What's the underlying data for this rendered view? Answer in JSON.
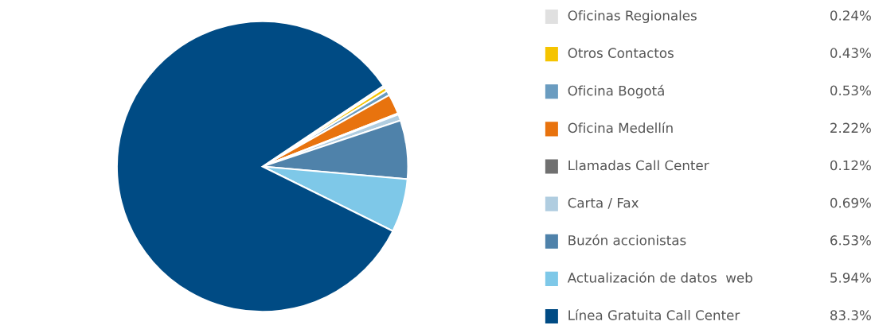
{
  "chart_data": {
    "type": "pie",
    "categories": [
      "Oficinas Regionales",
      "Otros Contactos",
      "Oficina Bogotá",
      "Oficina Medellín",
      "Llamadas Call Center",
      "Carta / Fax",
      "Buzón accionistas",
      "Actualización de datos  web",
      "Línea Gratuita Call Center"
    ],
    "values": [
      0.24,
      0.43,
      0.53,
      2.22,
      0.12,
      0.69,
      6.53,
      5.94,
      83.3
    ],
    "value_labels": [
      "0.24%",
      "0.43%",
      "0.53%",
      "2.22%",
      "0.12%",
      "0.69%",
      "6.53%",
      "5.94%",
      "83.3%"
    ],
    "colors": [
      "#e0e0e0",
      "#f5c400",
      "#6a9cc0",
      "#e8730e",
      "#707070",
      "#b0cde0",
      "#4f82aa",
      "#7ec8e8",
      "#004b84"
    ],
    "legend": "right"
  }
}
